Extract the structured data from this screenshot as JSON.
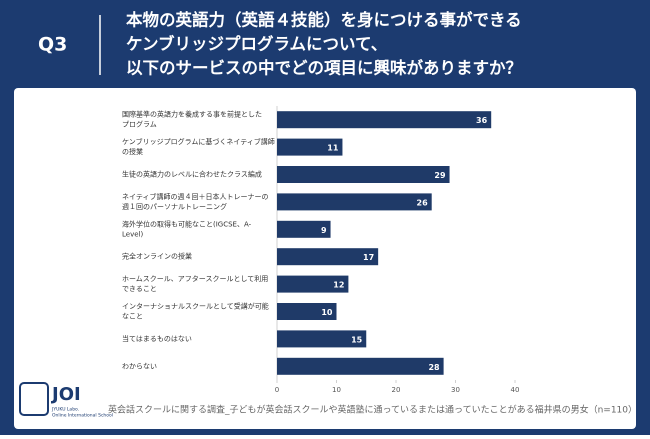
{
  "header": {
    "badge": "Q3",
    "title_lines": [
      "本物の英語力（英語４技能）を身につける事ができる",
      "ケンブリッジプログラムについて、",
      "以下のサービスの中でどの項目に興味がありますか？"
    ]
  },
  "chart_data": {
    "type": "bar",
    "orientation": "horizontal",
    "categories": [
      [
        "国際基準の英語力を養成する事を前提とした",
        "プログラム"
      ],
      [
        "ケンブリッジプログラムに基づくネイティブ講師",
        "の授業"
      ],
      [
        "生徒の英語力のレベルに合わせたクラス編成"
      ],
      [
        "ネイティブ講師の週４回＋日本人トレーナーの",
        "週１回のパーソナルトレーニング"
      ],
      [
        "海外学位の取得も可能なこと(IGCSE、A-",
        "Level)"
      ],
      [
        "完全オンラインの授業"
      ],
      [
        "ホームスクール、アフタースクールとして利用",
        "できること"
      ],
      [
        "インターナショナルスクールとして受講が可能",
        "なこと"
      ],
      [
        "当てはまるものはない"
      ],
      [
        "わからない"
      ]
    ],
    "values": [
      36,
      11,
      29,
      26,
      9,
      17,
      12,
      10,
      15,
      28
    ],
    "color": "#1f3a68",
    "xlim": [
      0,
      40
    ],
    "xticks": [
      0,
      10,
      20,
      30,
      40
    ]
  },
  "footer": {
    "logo": "JOI",
    "logo_sub": [
      "JYUKU Labo.",
      "Online International School"
    ],
    "note": "英会話スクールに関する調査_子どもが英会話スクールや英語塾に通っているまたは通っていたことがある福井県の男女（n=110）"
  }
}
